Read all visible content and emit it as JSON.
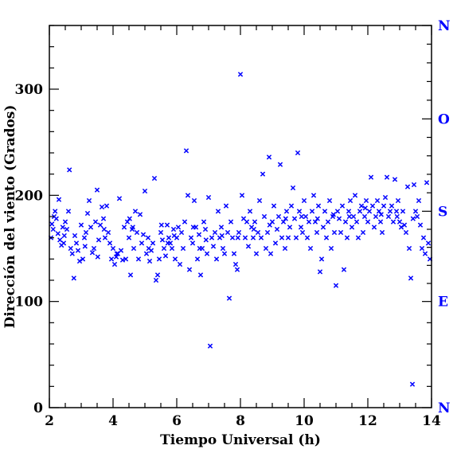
{
  "chart_data": {
    "type": "scatter",
    "title": "",
    "xlabel": "Tiempo Universal (h)",
    "ylabel": "Dirección del viento (Grados)",
    "xlim": [
      2,
      14
    ],
    "ylim": [
      0,
      360
    ],
    "x_ticks": [
      2,
      4,
      6,
      8,
      10,
      12,
      14
    ],
    "y_ticks": [
      0,
      100,
      200,
      300
    ],
    "x_minor_step": 0.5,
    "y_minor_step": 20,
    "marker": "x",
    "marker_color": "#0000ff",
    "axis_color": "#000000",
    "grid": false,
    "right_axis": {
      "labels": [
        "N",
        "E",
        "S",
        "O",
        "N"
      ],
      "values": [
        0,
        100,
        185,
        272,
        360
      ],
      "color": "#0000ff"
    },
    "series": [
      {
        "points": [
          [
            2.05,
            160
          ],
          [
            2.08,
            173
          ],
          [
            2.12,
            168
          ],
          [
            2.18,
            185
          ],
          [
            2.22,
            178
          ],
          [
            2.27,
            164
          ],
          [
            2.3,
            196
          ],
          [
            2.33,
            158
          ],
          [
            2.38,
            153
          ],
          [
            2.42,
            170
          ],
          [
            2.47,
            162
          ],
          [
            2.5,
            175
          ],
          [
            2.55,
            168
          ],
          [
            2.6,
            185
          ],
          [
            2.63,
            224
          ],
          [
            2.67,
            150
          ],
          [
            2.72,
            145
          ],
          [
            2.77,
            122
          ],
          [
            2.8,
            162
          ],
          [
            2.85,
            155
          ],
          [
            2.9,
            148
          ],
          [
            2.95,
            138
          ],
          [
            3.0,
            172
          ],
          [
            3.05,
            140
          ],
          [
            3.1,
            160
          ],
          [
            3.15,
            165
          ],
          [
            3.2,
            183
          ],
          [
            3.25,
            195
          ],
          [
            3.3,
            170
          ],
          [
            3.35,
            146
          ],
          [
            3.4,
            150
          ],
          [
            3.45,
            175
          ],
          [
            3.5,
            205
          ],
          [
            3.55,
            158
          ],
          [
            3.6,
            172
          ],
          [
            3.65,
            189
          ],
          [
            3.7,
            178
          ],
          [
            3.75,
            160
          ],
          [
            3.8,
            190
          ],
          [
            3.85,
            165
          ],
          [
            3.9,
            155
          ],
          [
            3.95,
            140
          ],
          [
            4.0,
            150
          ],
          [
            4.05,
            135
          ],
          [
            4.1,
            142
          ],
          [
            4.15,
            145
          ],
          [
            4.2,
            197
          ],
          [
            4.25,
            148
          ],
          [
            4.3,
            139
          ],
          [
            4.35,
            170
          ],
          [
            4.4,
            140
          ],
          [
            4.45,
            175
          ],
          [
            4.5,
            160
          ],
          [
            4.55,
            125
          ],
          [
            4.6,
            168
          ],
          [
            4.65,
            150
          ],
          [
            4.7,
            185
          ],
          [
            4.75,
            165
          ],
          [
            4.8,
            140
          ],
          [
            4.85,
            182
          ],
          [
            4.9,
            155
          ],
          [
            4.95,
            163
          ],
          [
            5.0,
            204
          ],
          [
            5.05,
            145
          ],
          [
            5.1,
            160
          ],
          [
            5.15,
            138
          ],
          [
            5.2,
            148
          ],
          [
            5.25,
            155
          ],
          [
            5.3,
            216
          ],
          [
            5.35,
            120
          ],
          [
            5.4,
            125
          ],
          [
            5.45,
            140
          ],
          [
            5.5,
            165
          ],
          [
            5.55,
            158
          ],
          [
            5.6,
            150
          ],
          [
            5.65,
            143
          ],
          [
            5.7,
            172
          ],
          [
            5.75,
            160
          ],
          [
            5.8,
            155
          ],
          [
            5.85,
            150
          ],
          [
            5.9,
            168
          ],
          [
            5.95,
            140
          ],
          [
            6.0,
            160
          ],
          [
            6.05,
            170
          ],
          [
            6.1,
            135
          ],
          [
            6.15,
            165
          ],
          [
            6.2,
            150
          ],
          [
            6.25,
            175
          ],
          [
            6.3,
            242
          ],
          [
            6.35,
            200
          ],
          [
            6.4,
            130
          ],
          [
            6.45,
            160
          ],
          [
            6.5,
            155
          ],
          [
            6.55,
            195
          ],
          [
            6.6,
            170
          ],
          [
            6.65,
            140
          ],
          [
            6.7,
            163
          ],
          [
            6.75,
            125
          ],
          [
            6.8,
            150
          ],
          [
            6.85,
            175
          ],
          [
            6.9,
            168
          ],
          [
            6.95,
            145
          ],
          [
            7.0,
            198
          ],
          [
            7.05,
            58
          ],
          [
            7.1,
            160
          ],
          [
            7.15,
            152
          ],
          [
            7.2,
            165
          ],
          [
            7.25,
            140
          ],
          [
            7.3,
            185
          ],
          [
            7.35,
            160
          ],
          [
            7.4,
            170
          ],
          [
            7.45,
            150
          ],
          [
            7.5,
            145
          ],
          [
            7.55,
            190
          ],
          [
            7.6,
            165
          ],
          [
            7.65,
            103
          ],
          [
            7.7,
            175
          ],
          [
            7.75,
            160
          ],
          [
            7.8,
            145
          ],
          [
            7.85,
            135
          ],
          [
            7.9,
            130
          ],
          [
            7.95,
            165
          ],
          [
            8.0,
            314
          ],
          [
            8.05,
            200
          ],
          [
            8.1,
            178
          ],
          [
            8.15,
            160
          ],
          [
            8.2,
            175
          ],
          [
            8.25,
            152
          ],
          [
            8.3,
            185
          ],
          [
            8.35,
            170
          ],
          [
            8.4,
            160
          ],
          [
            8.45,
            175
          ],
          [
            8.5,
            145
          ],
          [
            8.55,
            165
          ],
          [
            8.6,
            195
          ],
          [
            8.65,
            160
          ],
          [
            8.7,
            220
          ],
          [
            8.75,
            180
          ],
          [
            8.8,
            150
          ],
          [
            8.85,
            165
          ],
          [
            8.9,
            236
          ],
          [
            8.95,
            145
          ],
          [
            9.0,
            175
          ],
          [
            9.05,
            190
          ],
          [
            9.1,
            155
          ],
          [
            9.15,
            168
          ],
          [
            9.2,
            180
          ],
          [
            9.25,
            229
          ],
          [
            9.3,
            160
          ],
          [
            9.35,
            175
          ],
          [
            9.4,
            150
          ],
          [
            9.45,
            185
          ],
          [
            9.5,
            160
          ],
          [
            9.55,
            170
          ],
          [
            9.6,
            190
          ],
          [
            9.65,
            207
          ],
          [
            9.7,
            178
          ],
          [
            9.75,
            160
          ],
          [
            9.8,
            240
          ],
          [
            9.85,
            185
          ],
          [
            9.9,
            170
          ],
          [
            9.95,
            165
          ],
          [
            10.0,
            195
          ],
          [
            10.05,
            180
          ],
          [
            10.1,
            160
          ],
          [
            10.15,
            175
          ],
          [
            10.2,
            150
          ],
          [
            10.25,
            185
          ],
          [
            10.3,
            200
          ],
          [
            10.35,
            175
          ],
          [
            10.4,
            165
          ],
          [
            10.45,
            190
          ],
          [
            10.5,
            128
          ],
          [
            10.55,
            140
          ],
          [
            10.6,
            170
          ],
          [
            10.65,
            185
          ],
          [
            10.7,
            160
          ],
          [
            10.75,
            175
          ],
          [
            10.8,
            195
          ],
          [
            10.85,
            150
          ],
          [
            10.9,
            180
          ],
          [
            10.95,
            165
          ],
          [
            11.0,
            115
          ],
          [
            11.05,
            185
          ],
          [
            11.1,
            178
          ],
          [
            11.15,
            165
          ],
          [
            11.2,
            190
          ],
          [
            11.25,
            130
          ],
          [
            11.3,
            175
          ],
          [
            11.35,
            160
          ],
          [
            11.4,
            185
          ],
          [
            11.45,
            195
          ],
          [
            11.5,
            170
          ],
          [
            11.55,
            180
          ],
          [
            11.6,
            200
          ],
          [
            11.65,
            175
          ],
          [
            11.7,
            160
          ],
          [
            11.75,
            185
          ],
          [
            11.8,
            190
          ],
          [
            11.85,
            165
          ],
          [
            11.9,
            180
          ],
          [
            11.95,
            195
          ],
          [
            12.0,
            175
          ],
          [
            12.05,
            185
          ],
          [
            12.1,
            217
          ],
          [
            12.15,
            190
          ],
          [
            12.2,
            170
          ],
          [
            12.25,
            180
          ],
          [
            12.3,
            195
          ],
          [
            12.35,
            185
          ],
          [
            12.4,
            175
          ],
          [
            12.45,
            165
          ],
          [
            12.5,
            190
          ],
          [
            12.55,
            198
          ],
          [
            12.6,
            217
          ],
          [
            12.65,
            180
          ],
          [
            12.7,
            185
          ],
          [
            12.75,
            190
          ],
          [
            12.8,
            175
          ],
          [
            12.85,
            215
          ],
          [
            12.9,
            185
          ],
          [
            12.95,
            195
          ],
          [
            13.0,
            175
          ],
          [
            13.05,
            170
          ],
          [
            13.1,
            185
          ],
          [
            13.15,
            172
          ],
          [
            13.2,
            165
          ],
          [
            13.25,
            208
          ],
          [
            13.3,
            150
          ],
          [
            13.35,
            122
          ],
          [
            13.4,
            22
          ],
          [
            13.45,
            210
          ],
          [
            13.5,
            185
          ],
          [
            13.55,
            180
          ],
          [
            13.6,
            195
          ],
          [
            13.65,
            172
          ],
          [
            13.7,
            150
          ],
          [
            13.75,
            160
          ],
          [
            13.8,
            145
          ],
          [
            13.85,
            212
          ],
          [
            13.9,
            155
          ],
          [
            13.95,
            140
          ],
          [
            2.15,
            180
          ],
          [
            2.45,
            155
          ],
          [
            3.12,
            152
          ],
          [
            3.72,
            168
          ],
          [
            4.12,
            145
          ],
          [
            4.52,
            178
          ],
          [
            5.12,
            150
          ],
          [
            5.52,
            172
          ],
          [
            5.92,
            162
          ],
          [
            6.52,
            170
          ],
          [
            6.92,
            158
          ],
          [
            7.42,
            162
          ],
          [
            7.92,
            160
          ],
          [
            8.42,
            168
          ],
          [
            8.92,
            172
          ],
          [
            9.42,
            178
          ],
          [
            9.92,
            180
          ],
          [
            10.42,
            178
          ],
          [
            10.92,
            182
          ],
          [
            11.42,
            180
          ],
          [
            11.92,
            188
          ],
          [
            12.42,
            182
          ],
          [
            12.92,
            180
          ],
          [
            13.42,
            178
          ],
          [
            3.52,
            142
          ],
          [
            4.62,
            170
          ],
          [
            5.72,
            155
          ],
          [
            6.72,
            150
          ]
        ]
      }
    ]
  }
}
